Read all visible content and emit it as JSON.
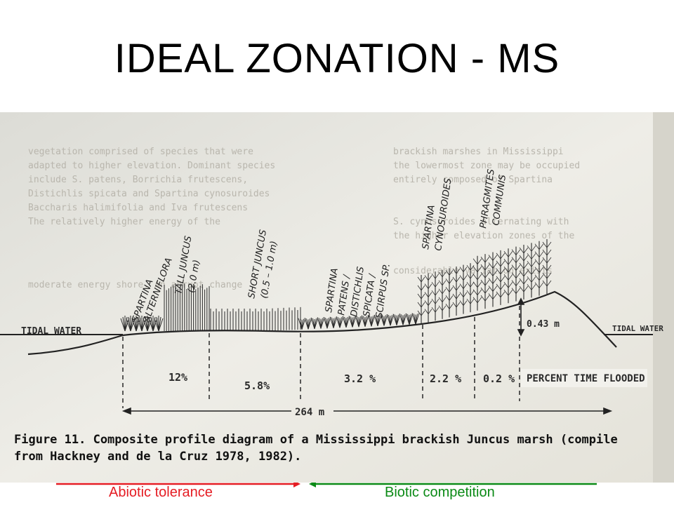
{
  "slide": {
    "title": "IDEAL ZONATION - MS"
  },
  "diagram": {
    "zones": {
      "spartina_alterniflora": [
        "SPARTINA",
        "ALTERNIFLORA"
      ],
      "tall_juncus": [
        "TALL JUNCUS",
        "(2.0 m)"
      ],
      "short_juncus": [
        "SHORT JUNCUS",
        "(0.5 – 1.0 m)"
      ],
      "spartina_patens": [
        "SPARTINA",
        "PATENS /",
        "DISTICHLIS",
        "SPICATA /",
        "SCIRPUS SP."
      ],
      "spartina_cynosuroides": [
        "SPARTINA",
        "CYNOSUROIDES"
      ],
      "phragmites": [
        "PHRAGMITES",
        "COMMUNIS"
      ]
    },
    "tidal_water_left": "TIDAL WATER",
    "tidal_water_right": "TIDAL WATER",
    "elevation_label": "0.43 m",
    "flood_percents": [
      "12%",
      "5.8%",
      "3.2 %",
      "2.2 %",
      "0.2 %"
    ],
    "percent_time_flooded": "PERCENT TIME FLOODED",
    "distance": "264 m",
    "caption_line1": "Figure 11.  Composite profile diagram of a Mississippi brackish Juncus marsh (compile",
    "caption_line2": "from Hackney and de la Cruz 1978, 1982)."
  },
  "footer": {
    "abiotic_label": "Abiotic tolerance",
    "biotic_label": "Biotic competition",
    "abiotic_color": "#e51c23",
    "biotic_color": "#0b8a16"
  }
}
